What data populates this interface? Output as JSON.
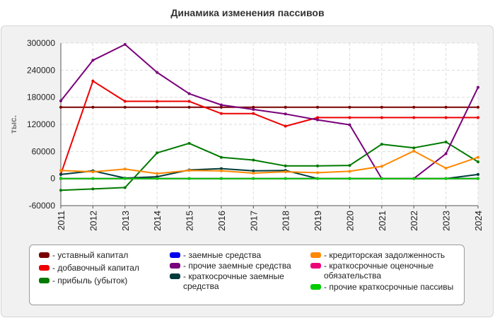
{
  "chart_data": {
    "type": "line",
    "title": "Динамика изменения пассивов",
    "xlabel": "",
    "ylabel": "тыс.",
    "x": [
      "2011",
      "2012",
      "2013",
      "2014",
      "2015",
      "2016",
      "2017",
      "2018",
      "2019",
      "2020",
      "2021",
      "2022",
      "2023",
      "2024"
    ],
    "ylim": [
      -60000,
      300000
    ],
    "yticks": [
      "300000",
      "240000",
      "180000",
      "120000",
      "60000",
      "0",
      "-60000"
    ],
    "grid": true,
    "legend_position": "bottom",
    "series": [
      {
        "name": "уставный капитал",
        "color": "#7a0000",
        "values": [
          158000,
          158000,
          158000,
          158000,
          158000,
          158000,
          158000,
          158000,
          158000,
          158000,
          158000,
          158000,
          158000,
          158000
        ]
      },
      {
        "name": "добавочный капитал",
        "color": "#ee0000",
        "values": [
          10000,
          216000,
          171000,
          171000,
          171000,
          144000,
          144000,
          116000,
          135000,
          135000,
          135000,
          135000,
          135000,
          135000
        ]
      },
      {
        "name": "прибыль (убыток)",
        "color": "#007a00",
        "values": [
          -26000,
          -23000,
          -20000,
          57000,
          78000,
          47000,
          41000,
          28000,
          28000,
          29000,
          76000,
          68000,
          81000,
          37000
        ]
      },
      {
        "name": "заемные средства",
        "color": "#0000ee",
        "values": [
          0,
          0,
          0,
          0,
          0,
          0,
          0,
          0,
          0,
          0,
          0,
          0,
          0,
          0
        ]
      },
      {
        "name": "прочие заемные средства",
        "color": "#7a007a",
        "values": [
          172000,
          262000,
          297000,
          235000,
          188000,
          163000,
          153000,
          143000,
          130000,
          119000,
          0,
          0,
          55000,
          202000
        ]
      },
      {
        "name": "краткосрочные заемные средства",
        "color": "#003c3c",
        "values": [
          9000,
          17000,
          1000,
          4000,
          19000,
          22000,
          17000,
          18000,
          0,
          0,
          0,
          0,
          0,
          9000
        ]
      },
      {
        "name": "кредиторская задолженность",
        "color": "#ff8800",
        "values": [
          18000,
          15000,
          21000,
          11000,
          18000,
          17000,
          12000,
          15000,
          13000,
          16000,
          27000,
          61000,
          23000,
          47000
        ]
      },
      {
        "name": "краткосрочные оценочные обязательства",
        "color": "#ee0077",
        "values": [
          0,
          0,
          0,
          0,
          0,
          0,
          0,
          0,
          0,
          0,
          0,
          0,
          0,
          0
        ]
      },
      {
        "name": "прочие краткосрочные пассивы",
        "color": "#00cc00",
        "values": [
          0,
          0,
          0,
          0,
          0,
          0,
          0,
          0,
          0,
          0,
          0,
          0,
          0,
          0
        ]
      }
    ]
  },
  "legend": {
    "items": [
      {
        "label": "- уставный капитал",
        "color": "#7a0000"
      },
      {
        "label": "- добавочный капитал",
        "color": "#ee0000"
      },
      {
        "label": "- прибыль (убыток)",
        "color": "#007a00"
      },
      {
        "label": "- заемные средства",
        "color": "#0000ee"
      },
      {
        "label": "- прочие заемные средства",
        "color": "#7a007a"
      },
      {
        "label": "- краткосрочные заемные средства",
        "color": "#003c3c"
      },
      {
        "label": "- кредиторская задолженность",
        "color": "#ff8800"
      },
      {
        "label": "- краткосрочные оценочные обязательства",
        "color": "#ee0077"
      },
      {
        "label": "- прочие краткосрочные пассивы",
        "color": "#00cc00"
      }
    ]
  }
}
